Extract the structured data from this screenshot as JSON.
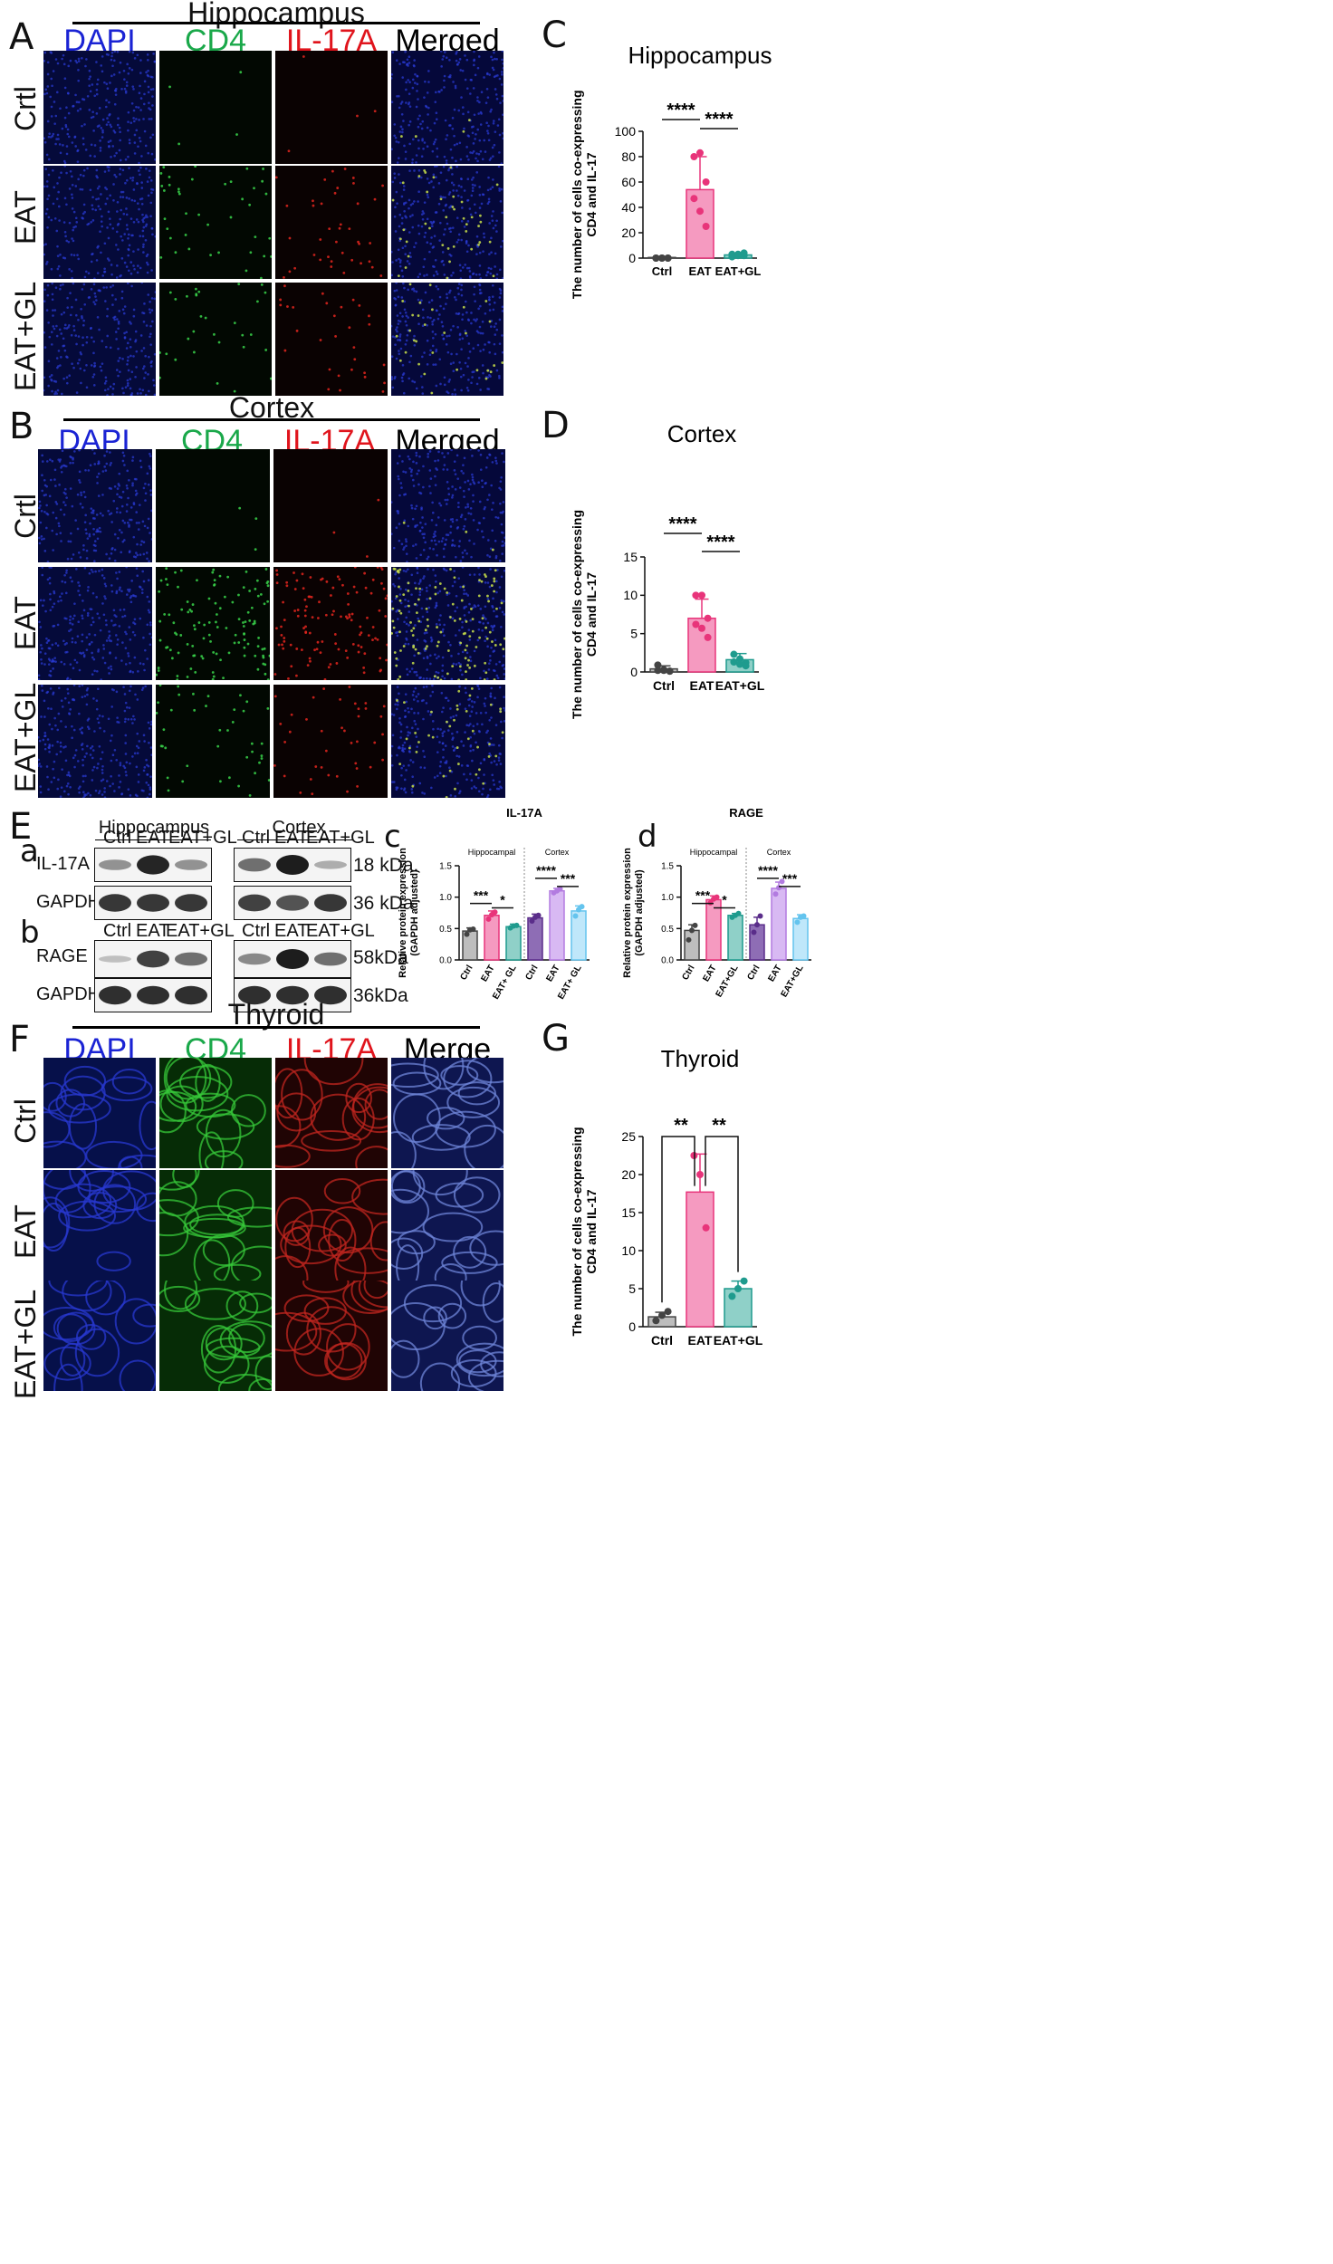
{
  "panels": {
    "A": {
      "letter": "A",
      "title": "Hippocampus",
      "channels": [
        "DAPI",
        "CD4",
        "IL-17A",
        "Merged"
      ],
      "rows": [
        "Crtl",
        "EAT",
        "EAT+GL"
      ]
    },
    "B": {
      "letter": "B",
      "title": "Cortex",
      "channels": [
        "DAPI",
        "CD4",
        "IL-17A",
        "Merged"
      ],
      "rows": [
        "Crtl",
        "EAT",
        "EAT+GL"
      ]
    },
    "E": {
      "letter": "E",
      "sub_a": "a",
      "sub_b": "b",
      "hippo_title": "Hippocampus",
      "cortex_title": "Cortex",
      "lanes": [
        "Ctrl",
        "EAT",
        "EAT+GL"
      ],
      "proteins": [
        "IL-17A",
        "GAPDH",
        "RAGE",
        "GAPDH"
      ],
      "sizes": [
        "18 kDa.",
        "36 kDa",
        "58kDa",
        "36kDa"
      ]
    },
    "F": {
      "letter": "F",
      "title": "Thyroid",
      "channels": [
        "DAPI",
        "CD4",
        "IL-17A",
        "Merge"
      ],
      "rows": [
        "Ctrl",
        "EAT",
        "EAT+GL"
      ]
    }
  },
  "chart_data": [
    {
      "panel": "C",
      "type": "bar",
      "title": "Hippocampus",
      "ylabel": "The number of cells co-expressing CD4 and IL-17",
      "categories": [
        "Ctrl",
        "EAT",
        "EAT+GL"
      ],
      "values": [
        0.5,
        54,
        2.5
      ],
      "errors": [
        0.3,
        26,
        1
      ],
      "points": [
        [
          0,
          0,
          0,
          0,
          0,
          0
        ],
        [
          80,
          83,
          60,
          47,
          37,
          25
        ],
        [
          1,
          2,
          2,
          3,
          3,
          4
        ]
      ],
      "ylim": [
        0,
        100
      ],
      "yticks": [
        0,
        20,
        40,
        60,
        80,
        100
      ],
      "colors": [
        "#444444",
        "#e8347a",
        "#1f9b8e"
      ],
      "fills": [
        "#bdbdbd",
        "#f59ac0",
        "#8fd0c8"
      ],
      "significance": [
        {
          "from": 0,
          "to": 1,
          "label": "****"
        },
        {
          "from": 1,
          "to": 2,
          "label": "****"
        }
      ]
    },
    {
      "panel": "D",
      "type": "bar",
      "title": "Cortex",
      "ylabel": "The number of cells co-expressing CD4 and IL-17",
      "categories": [
        "Ctrl",
        "EAT",
        "EAT+GL"
      ],
      "values": [
        0.4,
        7,
        1.6
      ],
      "errors": [
        0.4,
        2.5,
        0.8
      ],
      "points": [
        [
          0.9,
          0.2,
          0.1,
          0.2,
          0.3,
          0.1
        ],
        [
          10,
          10,
          7,
          6.2,
          5.7,
          4.5
        ],
        [
          2.3,
          1.7,
          1.2,
          1.3,
          1,
          0.8
        ]
      ],
      "ylim": [
        0,
        15
      ],
      "yticks": [
        0,
        5,
        10,
        15
      ],
      "colors": [
        "#444444",
        "#e8347a",
        "#1f9b8e"
      ],
      "fills": [
        "#bdbdbd",
        "#f59ac0",
        "#8fd0c8"
      ],
      "significance": [
        {
          "from": 0,
          "to": 1,
          "label": "****"
        },
        {
          "from": 1,
          "to": 2,
          "label": "****"
        }
      ]
    },
    {
      "panel": "c",
      "type": "bar",
      "title": "IL-17A",
      "ylabel": "Relative protein expression (GAPDH adjusted)",
      "group_labels": [
        "Hippocampal",
        "Cortex"
      ],
      "categories": [
        "Ctrl",
        "EAT",
        "EAT+ GL",
        "Ctrl",
        "EAT",
        "EAT+ GL"
      ],
      "values": [
        0.46,
        0.71,
        0.53,
        0.67,
        1.1,
        0.78
      ],
      "errors": [
        0.05,
        0.07,
        0.04,
        0.06,
        0.04,
        0.08
      ],
      "points": [
        [
          0.41,
          0.48,
          0.49
        ],
        [
          0.65,
          0.72,
          0.76
        ],
        [
          0.51,
          0.54,
          0.55
        ],
        [
          0.62,
          0.68,
          0.71
        ],
        [
          1.07,
          1.1,
          1.13
        ],
        [
          0.7,
          0.8,
          0.85
        ]
      ],
      "ylim": [
        0,
        1.5
      ],
      "yticks": [
        0.0,
        0.5,
        1.0,
        1.5
      ],
      "colors": [
        "#444444",
        "#e8347a",
        "#1f9b8e",
        "#5a2d8a",
        "#b27be0",
        "#64c4ee"
      ],
      "fills": [
        "#bdbdbd",
        "#f59ac0",
        "#8fd0c8",
        "#8e6db5",
        "#d8b9f3",
        "#bfe7fa"
      ],
      "significance": [
        {
          "from": 0,
          "to": 1,
          "label": "***",
          "level": 0
        },
        {
          "from": 1,
          "to": 2,
          "label": "*",
          "level": 1
        },
        {
          "from": 3,
          "to": 4,
          "label": "****",
          "level": 0
        },
        {
          "from": 4,
          "to": 5,
          "label": "***",
          "level": 1
        }
      ]
    },
    {
      "panel": "d",
      "type": "bar",
      "title": "RAGE",
      "ylabel": "Relative protein expression (GAPDH adjusted)",
      "group_labels": [
        "Hippocampal",
        "Cortex"
      ],
      "categories": [
        "Ctrl",
        "EAT",
        "EAT+GL",
        "Ctrl",
        "EAT",
        "EAT+GL"
      ],
      "values": [
        0.47,
        0.96,
        0.71,
        0.56,
        1.14,
        0.66
      ],
      "errors": [
        0.09,
        0.06,
        0.03,
        0.12,
        0.1,
        0.06
      ],
      "points": [
        [
          0.32,
          0.47,
          0.55
        ],
        [
          0.91,
          0.97,
          1.0
        ],
        [
          0.68,
          0.71,
          0.74
        ],
        [
          0.44,
          0.56,
          0.7
        ],
        [
          1.05,
          1.15,
          1.25
        ],
        [
          0.6,
          0.68,
          0.7
        ]
      ],
      "ylim": [
        0,
        1.5
      ],
      "yticks": [
        0.0,
        0.5,
        1.0,
        1.5
      ],
      "colors": [
        "#444444",
        "#e8347a",
        "#1f9b8e",
        "#5a2d8a",
        "#b27be0",
        "#64c4ee"
      ],
      "fills": [
        "#bdbdbd",
        "#f59ac0",
        "#8fd0c8",
        "#8e6db5",
        "#d8b9f3",
        "#bfe7fa"
      ],
      "significance": [
        {
          "from": 0,
          "to": 1,
          "label": "***",
          "level": 0
        },
        {
          "from": 1,
          "to": 2,
          "label": "*",
          "level": 1
        },
        {
          "from": 3,
          "to": 4,
          "label": "****",
          "level": 0
        },
        {
          "from": 4,
          "to": 5,
          "label": "***",
          "level": 1
        }
      ]
    },
    {
      "panel": "G",
      "type": "bar",
      "title": "Thyroid",
      "ylabel": "The number of cells co-expressing CD4 and IL-17",
      "categories": [
        "Ctrl",
        "EAT",
        "EAT+GL"
      ],
      "values": [
        1.3,
        17.7,
        5
      ],
      "errors": [
        0.6,
        5,
        1
      ],
      "points": [
        [
          0.8,
          1.5,
          2
        ],
        [
          22.5,
          20,
          13
        ],
        [
          4,
          5,
          6
        ]
      ],
      "ylim": [
        0,
        25
      ],
      "yticks": [
        0,
        5,
        10,
        15,
        20,
        25
      ],
      "colors": [
        "#444444",
        "#e8347a",
        "#1f9b8e"
      ],
      "fills": [
        "#bdbdbd",
        "#f59ac0",
        "#8fd0c8"
      ],
      "significance": [
        {
          "from": 0,
          "to": 1,
          "label": "**",
          "style": "bracket"
        },
        {
          "from": 1,
          "to": 2,
          "label": "**",
          "style": "bracket"
        }
      ]
    }
  ]
}
